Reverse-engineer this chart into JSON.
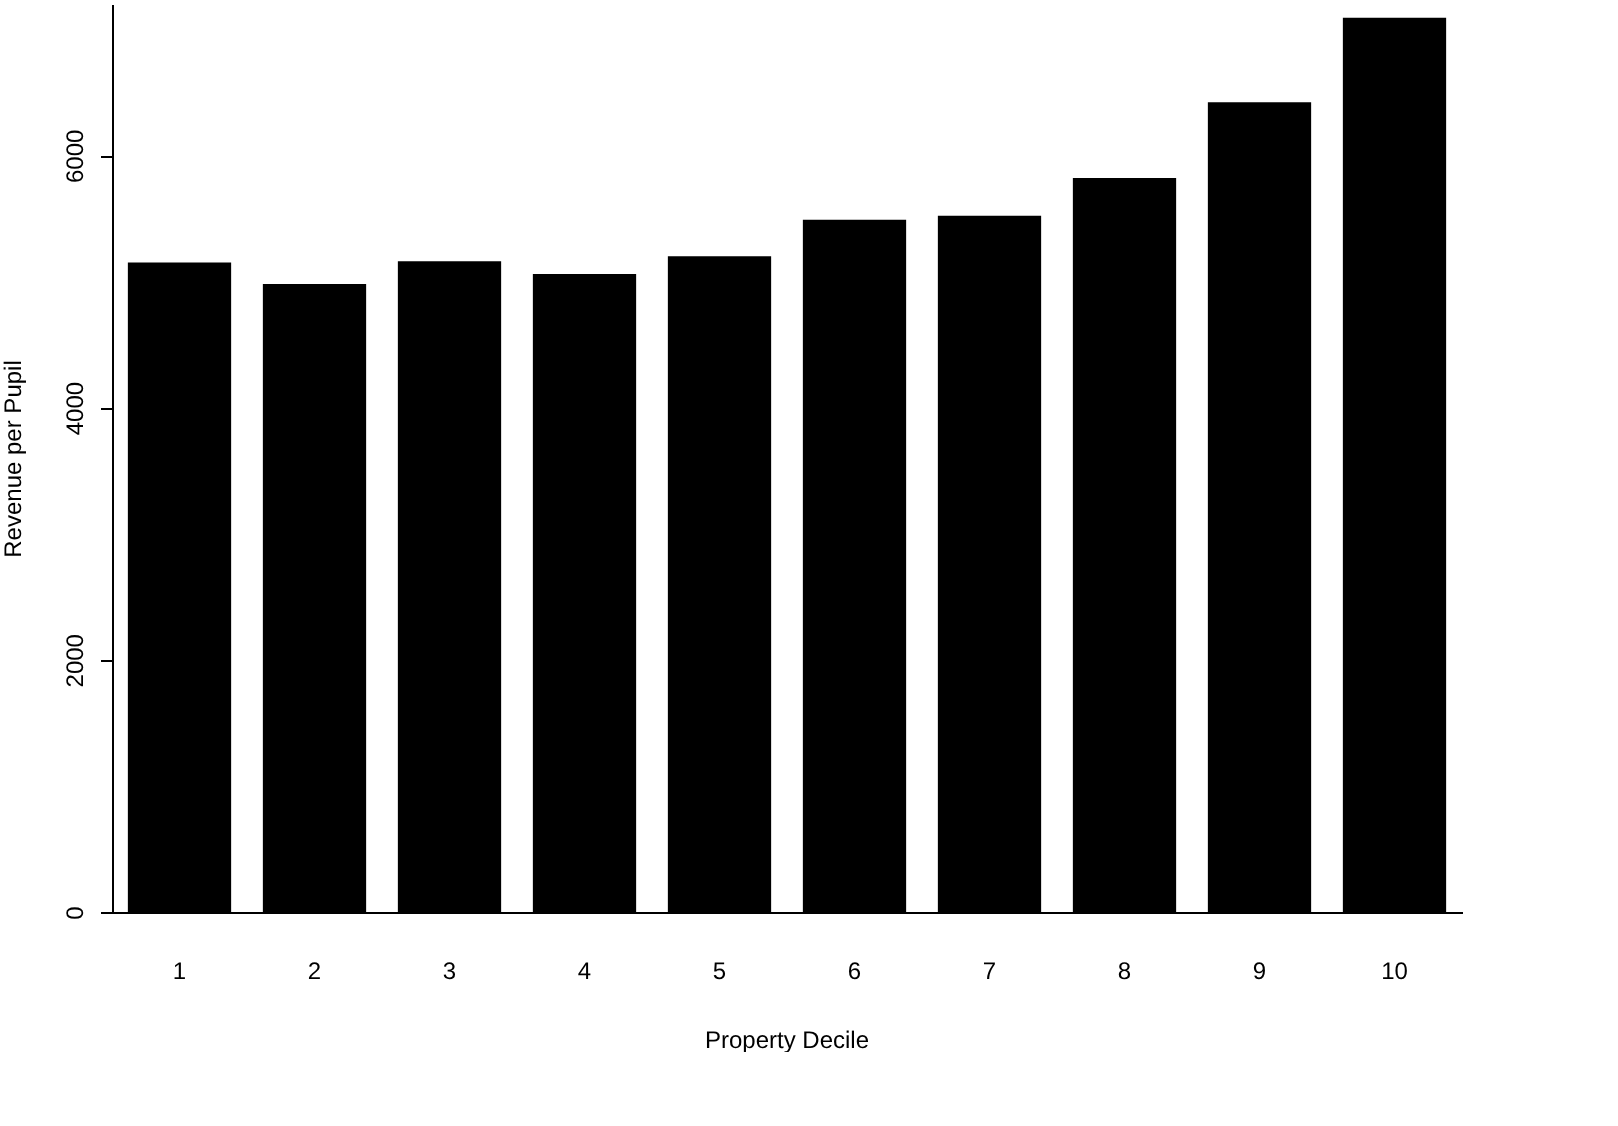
{
  "chart_data": {
    "type": "bar",
    "xlabel": "Property Decile",
    "ylabel": "Revenue per Pupil",
    "categories": [
      "1",
      "2",
      "3",
      "4",
      "5",
      "6",
      "7",
      "8",
      "9",
      "10"
    ],
    "values": [
      5150,
      4980,
      5160,
      5060,
      5200,
      5490,
      5520,
      5820,
      6420,
      7090
    ],
    "color": "#000000",
    "ylim": [
      0,
      7200
    ],
    "yticks": [
      0,
      2000,
      4000,
      6000
    ],
    "grid": false
  }
}
